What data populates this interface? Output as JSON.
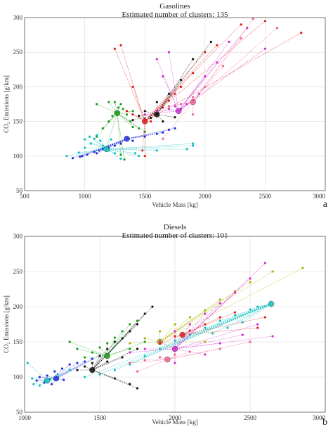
{
  "chart_data": [
    {
      "type": "scatter",
      "panel_label": "a",
      "title": "Gasolines",
      "subtitle": "Estimated number of clusters: 135",
      "xlabel": "Vehicle Mass [kg]",
      "ylabel": "CO₂ Emissions [g/km]",
      "xlim": [
        500,
        3000
      ],
      "ylim": [
        50,
        300
      ],
      "x_ticks": [
        "500",
        "1000",
        "1500",
        "2000",
        "2500",
        "3000"
      ],
      "y_ticks": [
        "50",
        "100",
        "150",
        "200",
        "250",
        "300"
      ],
      "grid": true,
      "series_colors": [
        "#1f2fe0",
        "#18a018",
        "#e01a1a",
        "#d22ad2",
        "#10c0c0",
        "#111111",
        "#b0b000",
        "#f06090"
      ],
      "clusters": [
        {
          "color": "#1f2fe0",
          "center": [
            1350,
            125
          ],
          "members": [
            [
              900,
              97
            ],
            [
              960,
              99
            ],
            [
              1020,
              102
            ],
            [
              1080,
              106
            ],
            [
              1120,
              108
            ],
            [
              1150,
              110
            ],
            [
              1200,
              112
            ],
            [
              1250,
              115
            ],
            [
              1300,
              118
            ],
            [
              1400,
              122
            ],
            [
              1500,
              128
            ],
            [
              1600,
              132
            ],
            [
              1650,
              134
            ],
            [
              1700,
              138
            ],
            [
              1750,
              140
            ],
            [
              1100,
              104
            ],
            [
              980,
              100
            ]
          ]
        },
        {
          "color": "#18a018",
          "center": [
            1270,
            162
          ],
          "members": [
            [
              1100,
              128
            ],
            [
              1150,
              140
            ],
            [
              1200,
              150
            ],
            [
              1230,
              158
            ],
            [
              1260,
              163
            ],
            [
              1280,
              170
            ],
            [
              1300,
              175
            ],
            [
              1320,
              168
            ],
            [
              1350,
              160
            ],
            [
              1380,
              150
            ],
            [
              1400,
              142
            ],
            [
              1450,
              140
            ],
            [
              1500,
              135
            ],
            [
              1250,
              178
            ],
            [
              1200,
              178
            ],
            [
              1180,
              112
            ],
            [
              1300,
              102
            ],
            [
              1330,
              95
            ],
            [
              1100,
              175
            ],
            [
              1400,
              165
            ]
          ]
        },
        {
          "color": "#e01a1a",
          "center": [
            1500,
            150
          ],
          "members": [
            [
              1350,
              165
            ],
            [
              1400,
              160
            ],
            [
              1450,
              158
            ],
            [
              1500,
              154
            ],
            [
              1550,
              150
            ],
            [
              1600,
              160
            ],
            [
              1650,
              170
            ],
            [
              1700,
              180
            ],
            [
              1750,
              190
            ],
            [
              1800,
              200
            ],
            [
              1900,
              220
            ],
            [
              2000,
              250
            ],
            [
              2100,
              260
            ],
            [
              2300,
              290
            ],
            [
              2500,
              295
            ],
            [
              2800,
              278
            ],
            [
              1300,
              260
            ],
            [
              1400,
              200
            ],
            [
              1250,
              255
            ],
            [
              1480,
              108
            ],
            [
              1500,
              100
            ]
          ]
        },
        {
          "color": "#d22ad2",
          "center": [
            1780,
            165
          ],
          "members": [
            [
              1500,
              160
            ],
            [
              1600,
              165
            ],
            [
              1700,
              168
            ],
            [
              1750,
              172
            ],
            [
              1800,
              168
            ],
            [
              1850,
              175
            ],
            [
              1900,
              180
            ],
            [
              1950,
              190
            ],
            [
              2000,
              215
            ],
            [
              2100,
              235
            ],
            [
              2200,
              265
            ],
            [
              2350,
              285
            ],
            [
              2500,
              255
            ],
            [
              1600,
              240
            ],
            [
              1700,
              250
            ],
            [
              1650,
              215
            ]
          ]
        },
        {
          "color": "#10c0c0",
          "center": [
            1180,
            110
          ],
          "members": [
            [
              850,
              100
            ],
            [
              950,
              105
            ],
            [
              1000,
              112
            ],
            [
              1050,
              118
            ],
            [
              1080,
              125
            ],
            [
              1100,
              130
            ],
            [
              1130,
              122
            ],
            [
              1150,
              115
            ],
            [
              1200,
              108
            ],
            [
              1250,
              104
            ],
            [
              1300,
              96
            ],
            [
              1450,
              100
            ],
            [
              1600,
              108
            ],
            [
              1850,
              110
            ],
            [
              1900,
              115
            ],
            [
              1900,
              118
            ],
            [
              1000,
              124
            ],
            [
              1040,
              128
            ],
            [
              1220,
              124
            ],
            [
              1420,
              104
            ]
          ]
        },
        {
          "color": "#111111",
          "center": [
            1600,
            160
          ],
          "members": [
            [
              1400,
              152
            ],
            [
              1450,
              158
            ],
            [
              1500,
              165
            ],
            [
              1600,
              178
            ],
            [
              1700,
              190
            ],
            [
              1800,
              210
            ],
            [
              1900,
              240
            ],
            [
              2050,
              265
            ],
            [
              1550,
              155
            ],
            [
              1650,
              150
            ],
            [
              1750,
              156
            ]
          ]
        },
        {
          "color": "#f06090",
          "center": [
            1900,
            178
          ],
          "members": [
            [
              1700,
              172
            ],
            [
              1800,
              175
            ],
            [
              1900,
              185
            ],
            [
              2000,
              200
            ],
            [
              2150,
              230
            ],
            [
              2300,
              270
            ],
            [
              2400,
              298
            ],
            [
              2600,
              285
            ],
            [
              1650,
              125
            ],
            [
              1900,
              160
            ]
          ]
        }
      ]
    },
    {
      "type": "scatter",
      "panel_label": "b",
      "title": "Diesels",
      "subtitle": "Estimated number of clusters: 101",
      "xlabel": "Vehicle Mass [kg]",
      "ylabel": "CO₂ Emissions [g/km]",
      "xlim": [
        1000,
        3000
      ],
      "ylim": [
        50,
        300
      ],
      "x_ticks": [
        "1000",
        "1500",
        "2000",
        "2500",
        "3000"
      ],
      "y_ticks": [
        "50",
        "100",
        "150",
        "200",
        "250",
        "300"
      ],
      "grid": true,
      "series_colors": [
        "#1f2fe0",
        "#18a018",
        "#e01a1a",
        "#d22ad2",
        "#10c0c0",
        "#111111",
        "#b0b000",
        "#f06090"
      ],
      "clusters": [
        {
          "color": "#10c0c0",
          "center": [
            2640,
            204
          ],
          "members": [
            [
              1600,
              110
            ],
            [
              1700,
              118
            ],
            [
              1800,
              130
            ],
            [
              1900,
              140
            ],
            [
              2000,
              152
            ],
            [
              2100,
              160
            ],
            [
              2200,
              170
            ],
            [
              2300,
              180
            ],
            [
              2400,
              188
            ],
            [
              2500,
              196
            ],
            [
              2550,
              200
            ],
            [
              2450,
              178
            ],
            [
              2350,
              170
            ],
            [
              2250,
              162
            ],
            [
              1500,
              104
            ],
            [
              1400,
              100
            ]
          ]
        },
        {
          "color": "#1f2fe0",
          "center": [
            1210,
            98
          ],
          "members": [
            [
              1080,
              95
            ],
            [
              1100,
              100
            ],
            [
              1150,
              102
            ],
            [
              1200,
              108
            ],
            [
              1250,
              112
            ],
            [
              1300,
              118
            ],
            [
              1350,
              120
            ],
            [
              1400,
              122
            ],
            [
              1450,
              126
            ],
            [
              1500,
              130
            ],
            [
              1180,
              90
            ],
            [
              1130,
              92
            ],
            [
              1260,
              96
            ]
          ]
        },
        {
          "color": "#10c0c0",
          "center": [
            1150,
            95
          ],
          "members": [
            [
              1060,
              90
            ],
            [
              1100,
              88
            ],
            [
              1140,
              93
            ],
            [
              1170,
              97
            ],
            [
              1220,
              104
            ],
            [
              1050,
              98
            ],
            [
              1020,
              120
            ],
            [
              1300,
              110
            ]
          ]
        },
        {
          "color": "#111111",
          "center": [
            1450,
            110
          ],
          "members": [
            [
              1350,
              110
            ],
            [
              1400,
              115
            ],
            [
              1450,
              120
            ],
            [
              1500,
              130
            ],
            [
              1550,
              140
            ],
            [
              1600,
              150
            ],
            [
              1650,
              155
            ],
            [
              1700,
              165
            ],
            [
              1750,
              175
            ],
            [
              1800,
              190
            ],
            [
              1850,
              200
            ],
            [
              1550,
              122
            ],
            [
              1650,
              128
            ],
            [
              1750,
              140
            ],
            [
              1600,
              98
            ],
            [
              1700,
              90
            ],
            [
              1750,
              84
            ]
          ]
        },
        {
          "color": "#18a018",
          "center": [
            1550,
            130
          ],
          "members": [
            [
              1400,
              128
            ],
            [
              1450,
              135
            ],
            [
              1500,
              142
            ],
            [
              1550,
              148
            ],
            [
              1600,
              156
            ],
            [
              1650,
              165
            ],
            [
              1700,
              175
            ],
            [
              1750,
              180
            ],
            [
              1350,
              140
            ],
            [
              1300,
              150
            ],
            [
              1700,
              140
            ],
            [
              1800,
              150
            ]
          ]
        },
        {
          "color": "#b0b000",
          "center": [
            1900,
            150
          ],
          "members": [
            [
              1700,
              148
            ],
            [
              1800,
              155
            ],
            [
              1900,
              165
            ],
            [
              2000,
              175
            ],
            [
              2100,
              185
            ],
            [
              2200,
              195
            ],
            [
              2300,
              210
            ],
            [
              2400,
              222
            ],
            [
              2500,
              235
            ],
            [
              2650,
              250
            ],
            [
              2850,
              255
            ],
            [
              2000,
              140
            ],
            [
              2200,
              150
            ]
          ]
        },
        {
          "color": "#d22ad2",
          "center": [
            2000,
            140
          ],
          "members": [
            [
              1700,
              135
            ],
            [
              1800,
              140
            ],
            [
              1900,
              150
            ],
            [
              2000,
              165
            ],
            [
              2100,
              175
            ],
            [
              2200,
              190
            ],
            [
              2300,
              205
            ],
            [
              2400,
              220
            ],
            [
              2500,
              240
            ],
            [
              2600,
              262
            ],
            [
              2300,
              148
            ],
            [
              2450,
              160
            ],
            [
              2550,
              175
            ],
            [
              2650,
              158
            ],
            [
              2000,
              120
            ],
            [
              2200,
              132
            ]
          ]
        },
        {
          "color": "#e01a1a",
          "center": [
            2050,
            160
          ],
          "members": [
            [
              1900,
              148
            ],
            [
              2000,
              158
            ],
            [
              2100,
              166
            ],
            [
              2200,
              175
            ],
            [
              2300,
              185
            ],
            [
              2400,
              192
            ],
            [
              2550,
              170
            ],
            [
              2600,
              185
            ]
          ]
        },
        {
          "color": "#f06090",
          "center": [
            1950,
            125
          ],
          "members": [
            [
              1700,
              120
            ],
            [
              1800,
              124
            ],
            [
              1900,
              128
            ],
            [
              2000,
              132
            ],
            [
              2100,
              136
            ],
            [
              2300,
              140
            ],
            [
              2500,
              150
            ],
            [
              1750,
              108
            ]
          ]
        }
      ]
    }
  ]
}
